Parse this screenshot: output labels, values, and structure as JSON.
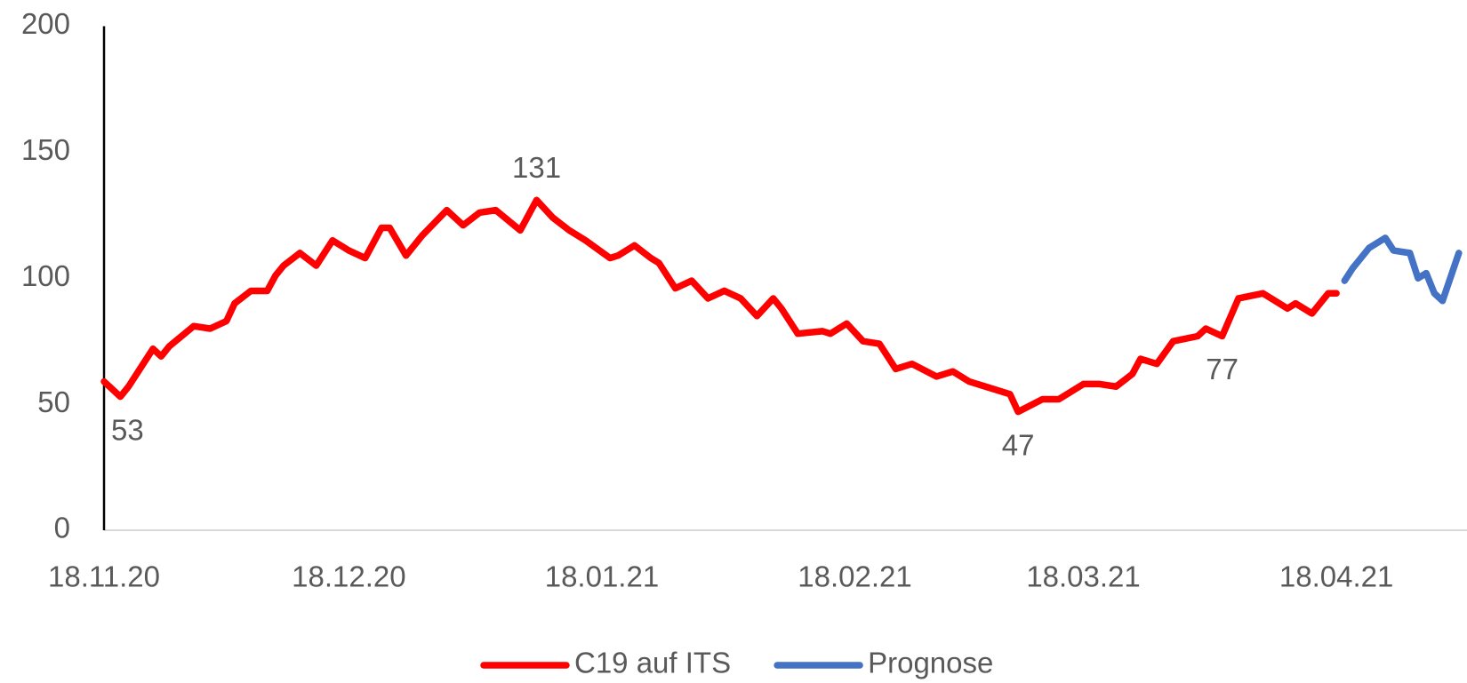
{
  "chart_data": {
    "type": "line",
    "xticks": [
      "18.11.20",
      "18.12.20",
      "18.01.21",
      "18.02.21",
      "18.03.21",
      "18.04.21"
    ],
    "xlim": [
      "18.11.20",
      "04.05.21"
    ],
    "ylim": [
      0,
      200
    ],
    "yticks": [
      0,
      50,
      100,
      150,
      200
    ],
    "grid": false,
    "legend": "bottom",
    "labeled_points": [
      1,
      29,
      59,
      71
    ],
    "series": [
      {
        "name": "C19 auf ITS",
        "color": "#ff0000",
        "x": [
          "18.11.20",
          "20.11.20",
          "21.11.20",
          "22.11.20",
          "24.11.20",
          "25.11.20",
          "26.11.20",
          "29.11.20",
          "01.12.20",
          "03.12.20",
          "04.12.20",
          "06.12.20",
          "08.12.20",
          "09.12.20",
          "10.12.20",
          "12.12.20",
          "14.12.20",
          "16.12.20",
          "18.12.20",
          "20.12.20",
          "22.12.20",
          "23.12.20",
          "25.12.20",
          "27.12.20",
          "30.12.20",
          "01.01.21",
          "03.01.21",
          "05.01.21",
          "08.01.21",
          "10.01.21",
          "12.01.21",
          "14.01.21",
          "16.01.21",
          "19.01.21",
          "20.01.21",
          "22.01.21",
          "24.01.21",
          "25.01.21",
          "27.01.21",
          "29.01.21",
          "31.01.21",
          "02.02.21",
          "04.02.21",
          "06.02.21",
          "08.02.21",
          "09.02.21",
          "11.02.21",
          "14.02.21",
          "15.02.21",
          "17.02.21",
          "19.02.21",
          "21.02.21",
          "23.02.21",
          "25.02.21",
          "28.02.21",
          "02.03.21",
          "04.03.21",
          "06.03.21",
          "09.03.21",
          "10.03.21",
          "13.03.21",
          "15.03.21",
          "18.03.21",
          "20.03.21",
          "22.03.21",
          "24.03.21",
          "25.03.21",
          "27.03.21",
          "29.03.21",
          "01.04.21",
          "02.04.21",
          "04.04.21",
          "06.04.21",
          "09.04.21",
          "10.04.21",
          "12.04.21",
          "13.04.21",
          "15.04.21",
          "17.04.21",
          "18.04.21"
        ],
        "values": [
          59,
          53,
          57,
          62,
          72,
          69,
          73,
          81,
          80,
          83,
          90,
          95,
          95,
          101,
          105,
          110,
          105,
          115,
          111,
          108,
          120,
          120,
          109,
          117,
          127,
          121,
          126,
          127,
          119,
          131,
          124,
          119,
          115,
          108,
          109,
          113,
          108,
          106,
          96,
          99,
          92,
          95,
          92,
          85,
          92,
          88,
          78,
          79,
          78,
          82,
          75,
          74,
          64,
          66,
          61,
          63,
          59,
          57,
          54,
          47,
          52,
          52,
          58,
          58,
          57,
          62,
          68,
          66,
          75,
          77,
          80,
          77,
          92,
          94,
          92,
          88,
          90,
          86,
          94,
          94
        ]
      },
      {
        "name": "Prognose",
        "color": "#4472c4",
        "x": [
          "19.04.21",
          "20.04.21",
          "22.04.21",
          "24.04.21",
          "25.04.21",
          "27.04.21",
          "28.04.21",
          "29.04.21",
          "30.04.21",
          "01.05.21",
          "03.05.21"
        ],
        "values": [
          99,
          104,
          112,
          116,
          111,
          110,
          100,
          102,
          94,
          91,
          110
        ]
      }
    ]
  }
}
